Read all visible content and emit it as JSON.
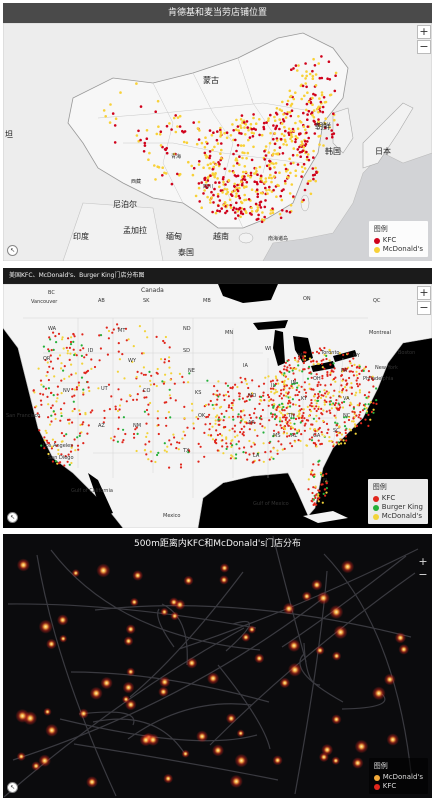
{
  "panel1": {
    "title": "肯德基和麦当劳店铺位置",
    "zoom_in": "+",
    "zoom_out": "−",
    "nav": "↖",
    "labels": [
      {
        "text": "蒙古",
        "key": "mongolia"
      },
      {
        "text": "朝鲜",
        "key": "nk"
      },
      {
        "text": "韩国",
        "key": "kr"
      },
      {
        "text": "日本",
        "key": "jp"
      },
      {
        "text": "尼泊尔",
        "key": "np"
      },
      {
        "text": "印度",
        "key": "in"
      },
      {
        "text": "缅甸",
        "key": "mm"
      },
      {
        "text": "越南",
        "key": "vn"
      },
      {
        "text": "泰国",
        "key": "th"
      },
      {
        "text": "孟加拉",
        "key": "bd"
      },
      {
        "text": "西藏",
        "key": "tibet"
      },
      {
        "text": "青海",
        "key": "qh"
      },
      {
        "text": "四川",
        "key": "sc"
      },
      {
        "text": "南海诸岛",
        "key": "scs"
      },
      {
        "text": "坦",
        "key": "tan"
      }
    ],
    "legend": {
      "title": "图例",
      "items": [
        {
          "label": "KFC",
          "color": "#d0021b"
        },
        {
          "label": "McDonald's",
          "color": "#f8d138"
        }
      ]
    }
  },
  "panel2": {
    "title": "美国KFC、McDonald's、Burger King门店分布图",
    "zoom_in": "+",
    "zoom_out": "−",
    "nav": "↖",
    "labels": [
      {
        "text": "Canada",
        "key": "ca"
      },
      {
        "text": "Vancouver",
        "key": "van"
      },
      {
        "text": "San Francisco",
        "key": "sf"
      },
      {
        "text": "Los Angeles",
        "key": "la"
      },
      {
        "text": "San Diego",
        "key": "sd"
      },
      {
        "text": "Gulf of Mexico",
        "key": "gom"
      },
      {
        "text": "Gulf of California",
        "key": "goc"
      },
      {
        "text": "Mexico",
        "key": "mx"
      },
      {
        "text": "Toronto",
        "key": "tor"
      },
      {
        "text": "Montreal",
        "key": "mtl"
      },
      {
        "text": "Boston",
        "key": "bos"
      },
      {
        "text": "New York",
        "key": "ny"
      },
      {
        "text": "Philadelphia",
        "key": "phl"
      },
      {
        "text": "QC",
        "key": "qc"
      },
      {
        "text": "ON",
        "key": "on"
      },
      {
        "text": "SK",
        "key": "sk"
      },
      {
        "text": "AB",
        "key": "ab"
      },
      {
        "text": "BC",
        "key": "bc"
      },
      {
        "text": "MB",
        "key": "mb"
      },
      {
        "text": "WA",
        "key": "wa"
      },
      {
        "text": "MT",
        "key": "mt"
      },
      {
        "text": "ND",
        "key": "nd"
      },
      {
        "text": "MN",
        "key": "mn"
      },
      {
        "text": "SD",
        "key": "sdk"
      },
      {
        "text": "WY",
        "key": "wy"
      },
      {
        "text": "ID",
        "key": "id"
      },
      {
        "text": "OR",
        "key": "or"
      },
      {
        "text": "NV",
        "key": "nv"
      },
      {
        "text": "UT",
        "key": "ut"
      },
      {
        "text": "CO",
        "key": "co"
      },
      {
        "text": "NE",
        "key": "ne"
      },
      {
        "text": "KS",
        "key": "ks"
      },
      {
        "text": "OK",
        "key": "ok"
      },
      {
        "text": "TX",
        "key": "tx"
      },
      {
        "text": "NM",
        "key": "nm"
      },
      {
        "text": "AZ",
        "key": "az"
      },
      {
        "text": "IA",
        "key": "ia"
      },
      {
        "text": "MO",
        "key": "mo"
      },
      {
        "text": "AR",
        "key": "ar"
      },
      {
        "text": "LA",
        "key": "lad"
      },
      {
        "text": "MS",
        "key": "ms"
      },
      {
        "text": "AL",
        "key": "al"
      },
      {
        "text": "GA",
        "key": "ga"
      },
      {
        "text": "FL",
        "key": "fl"
      },
      {
        "text": "TN",
        "key": "tn"
      },
      {
        "text": "KY",
        "key": "ky"
      },
      {
        "text": "IL",
        "key": "il"
      },
      {
        "text": "IN",
        "key": "ind"
      },
      {
        "text": "OH",
        "key": "oh"
      },
      {
        "text": "MI",
        "key": "mi"
      },
      {
        "text": "WI",
        "key": "wi"
      },
      {
        "text": "PA",
        "key": "pa"
      },
      {
        "text": "NY",
        "key": "nys"
      },
      {
        "text": "VA",
        "key": "va"
      },
      {
        "text": "NC",
        "key": "nc"
      },
      {
        "text": "SC",
        "key": "scd"
      }
    ],
    "legend": {
      "title": "图例",
      "items": [
        {
          "label": "KFC",
          "color": "#e0261c"
        },
        {
          "label": "Burger King",
          "color": "#25b03a"
        },
        {
          "label": "McDonald's",
          "color": "#f2d33a"
        }
      ]
    }
  },
  "panel3": {
    "title": "500m距离内KFC和McDonald's门店分布",
    "zoom_in": "+",
    "zoom_out": "−",
    "nav": "↖",
    "legend": {
      "title": "图例",
      "items": [
        {
          "label": "McDonald's",
          "color": "#f2a93a"
        },
        {
          "label": "KFC",
          "color": "#e0261c"
        }
      ]
    }
  }
}
